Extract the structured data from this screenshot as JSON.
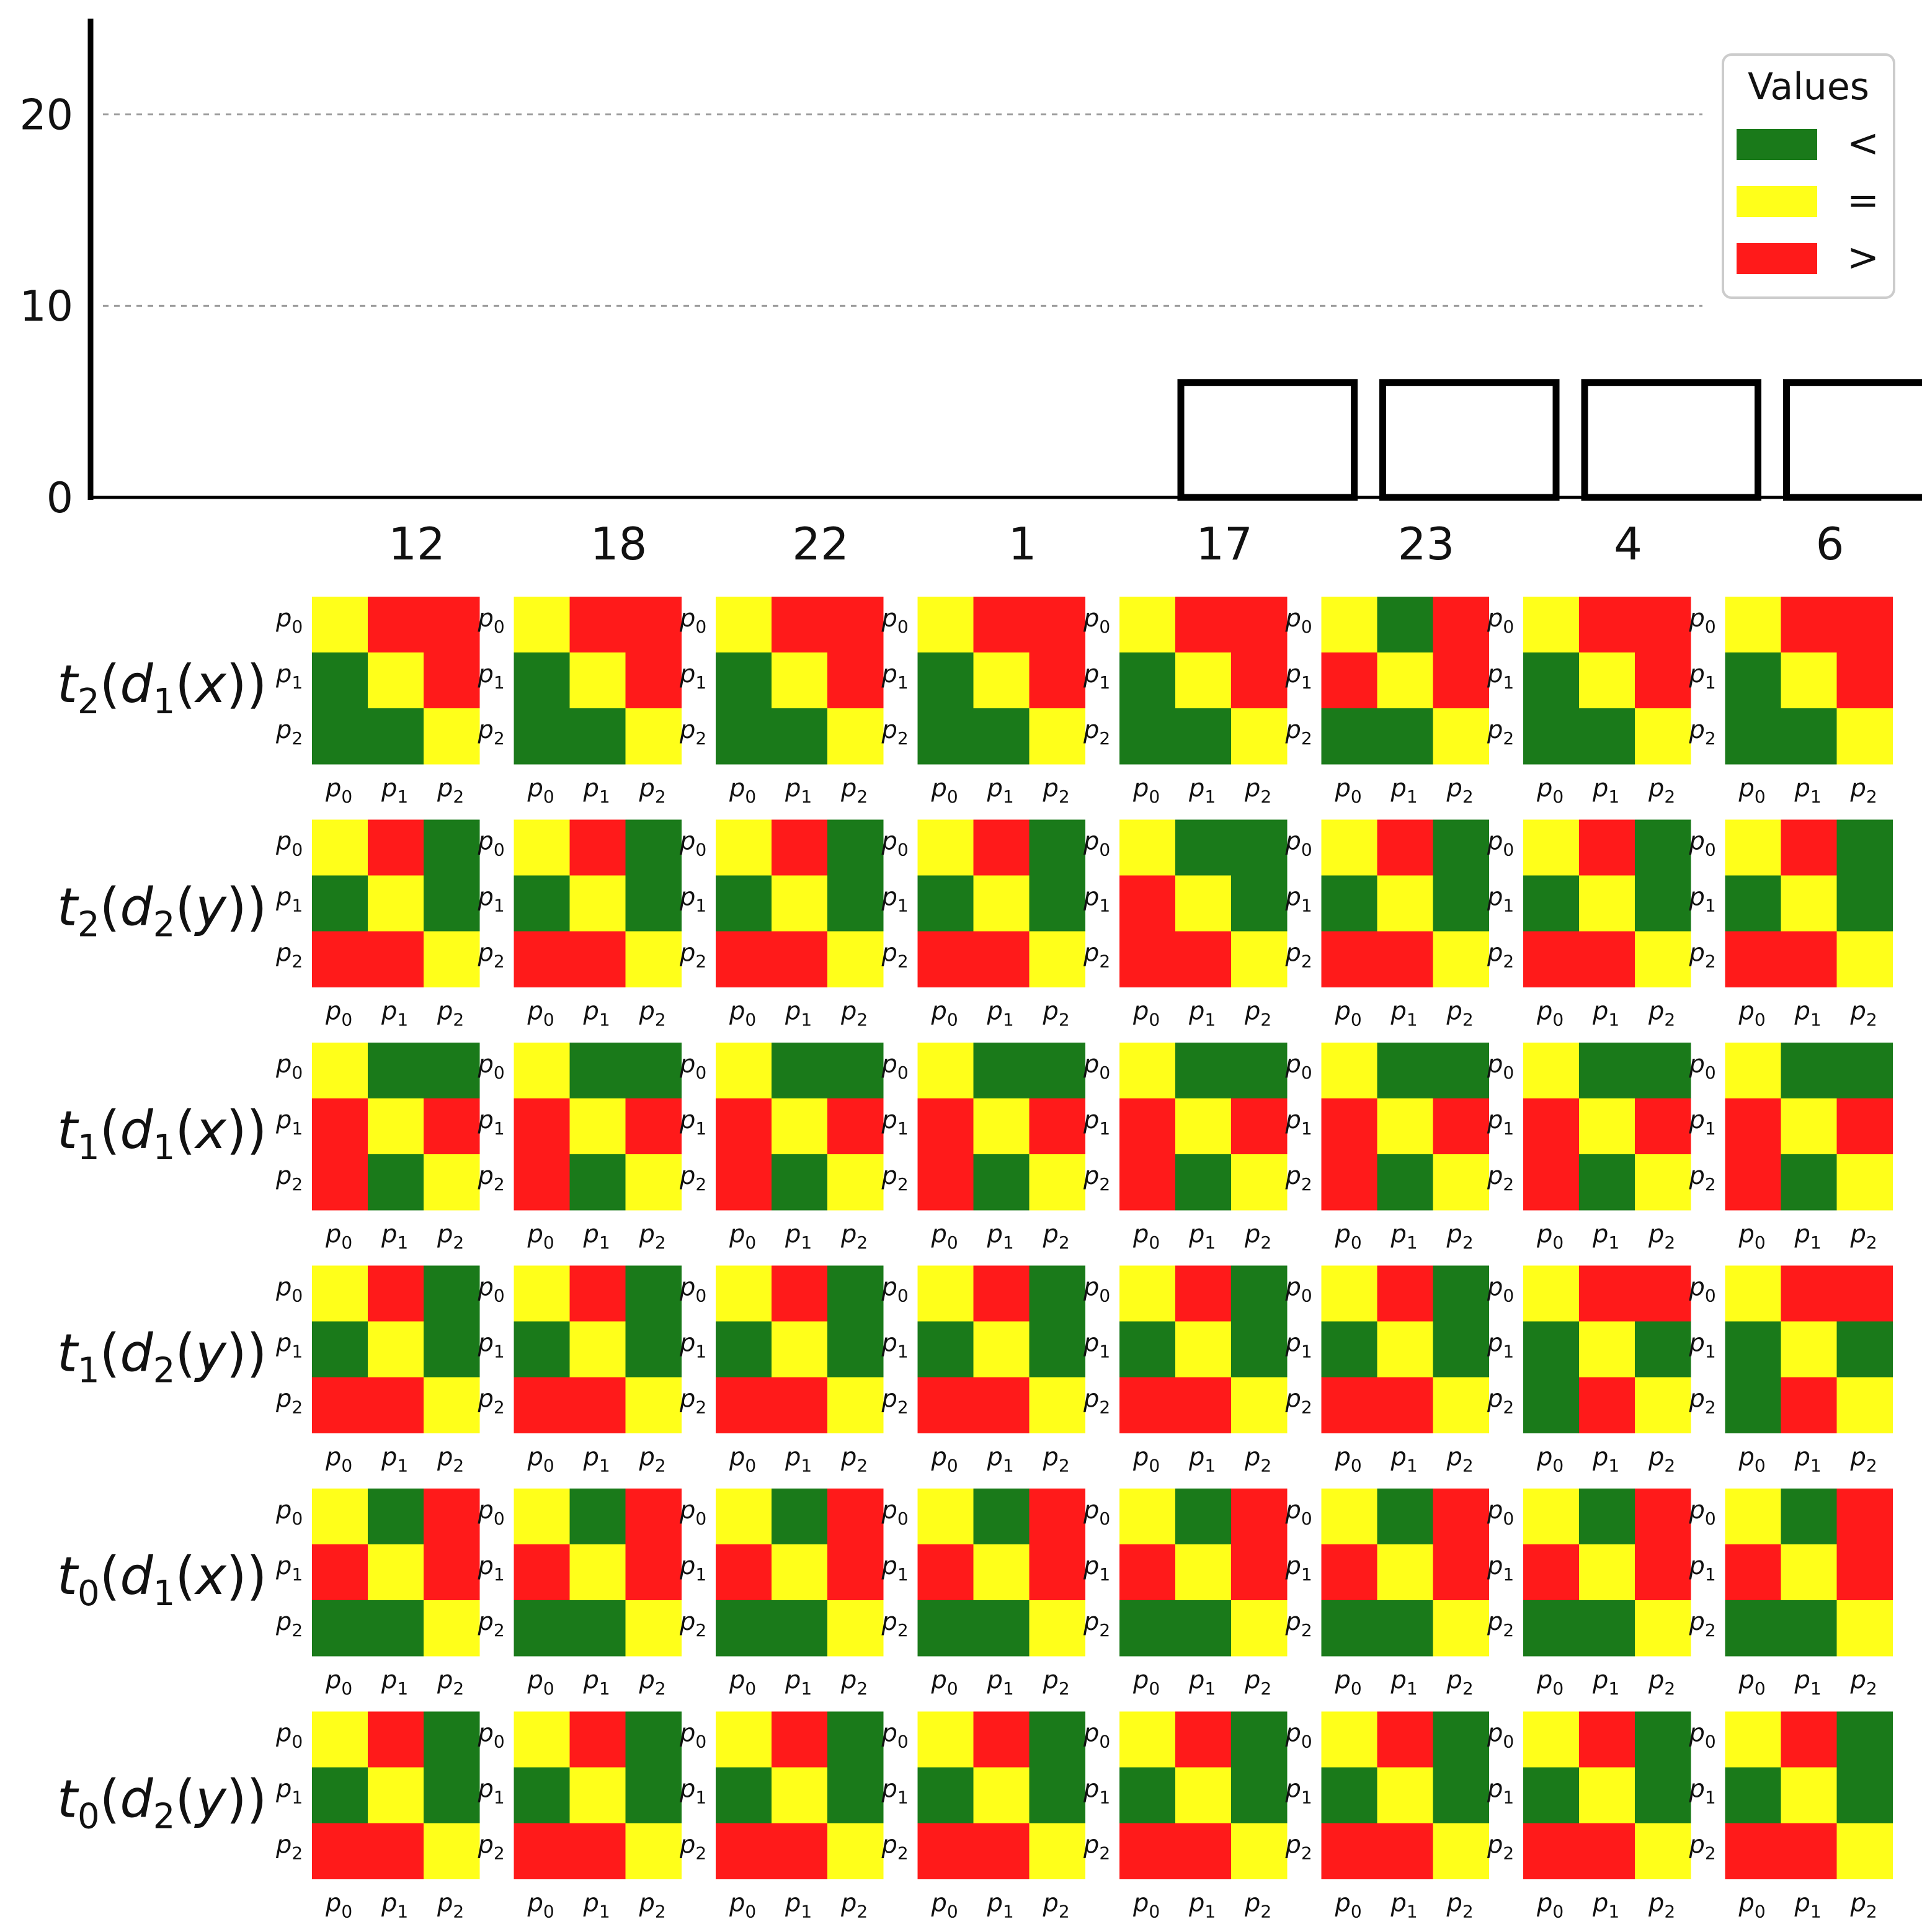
{
  "chart_data": {
    "type": "bar",
    "title": "",
    "xlabel": "",
    "ylabel": "",
    "ylim": [
      0,
      25
    ],
    "yticks": [
      "0",
      "10",
      "20"
    ],
    "ytick_values": [
      0,
      10,
      20
    ],
    "grid": "horizontal dotted at 10 and 20",
    "categories": [
      "12",
      "18",
      "22",
      "1",
      "17",
      "23",
      "4",
      "6"
    ],
    "values": [
      0,
      0,
      0,
      0,
      6,
      6,
      6,
      6
    ],
    "bar_style": "unfilled, black outline",
    "legend": {
      "title": "Values",
      "placement": "top-right",
      "entries": [
        {
          "label": "<",
          "color": "#1a7a1a"
        },
        {
          "label": "=",
          "color": "#ffff1a"
        },
        {
          "label": ">",
          "color": "#ff1a1a"
        }
      ]
    },
    "matrix_axis_labels": [
      {
        "base": "p",
        "sub": "0"
      },
      {
        "base": "p",
        "sub": "1"
      },
      {
        "base": "p",
        "sub": "2"
      }
    ],
    "matrix_cell_codes": {
      "<": "green",
      "=": "yellow",
      ">": "red"
    },
    "matrix_rows": [
      {
        "t": "t",
        "t_sub": "2",
        "d": "d",
        "d_sub": "1",
        "arg": "x",
        "matrices": [
          [
            "=>>",
            "<=>",
            "<<="
          ],
          [
            "=>>",
            "<=>",
            "<<="
          ],
          [
            "=>>",
            "<=>",
            "<<="
          ],
          [
            "=>>",
            "<=>",
            "<<="
          ],
          [
            "=>>",
            "<=>",
            "<<="
          ],
          [
            "=<>",
            ">=>",
            "<<="
          ],
          [
            "=>>",
            "<=>",
            "<<="
          ],
          [
            "=>>",
            "<=>",
            "<<="
          ]
        ]
      },
      {
        "t": "t",
        "t_sub": "2",
        "d": "d",
        "d_sub": "2",
        "arg": "y",
        "matrices": [
          [
            "=><",
            "<=<",
            ">>="
          ],
          [
            "=><",
            "<=<",
            ">>="
          ],
          [
            "=><",
            "<=<",
            ">>="
          ],
          [
            "=><",
            "<=<",
            ">>="
          ],
          [
            "=<<",
            ">=<",
            ">>="
          ],
          [
            "=><",
            "<=<",
            ">>="
          ],
          [
            "=><",
            "<=<",
            ">>="
          ],
          [
            "=><",
            "<=<",
            ">>="
          ]
        ]
      },
      {
        "t": "t",
        "t_sub": "1",
        "d": "d",
        "d_sub": "1",
        "arg": "x",
        "matrices": [
          [
            "=<<",
            ">=>",
            "><="
          ],
          [
            "=<<",
            ">=>",
            "><="
          ],
          [
            "=<<",
            ">=>",
            "><="
          ],
          [
            "=<<",
            ">=>",
            "><="
          ],
          [
            "=<<",
            ">=>",
            "><="
          ],
          [
            "=<<",
            ">=>",
            "><="
          ],
          [
            "=<<",
            ">=>",
            "><="
          ],
          [
            "=<<",
            ">=>",
            "><="
          ]
        ]
      },
      {
        "t": "t",
        "t_sub": "1",
        "d": "d",
        "d_sub": "2",
        "arg": "y",
        "matrices": [
          [
            "=><",
            "<=<",
            ">>="
          ],
          [
            "=><",
            "<=<",
            ">>="
          ],
          [
            "=><",
            "<=<",
            ">>="
          ],
          [
            "=><",
            "<=<",
            ">>="
          ],
          [
            "=><",
            "<=<",
            ">>="
          ],
          [
            "=><",
            "<=<",
            ">>="
          ],
          [
            "=>>",
            "<=<",
            "<>="
          ],
          [
            "=>>",
            "<=<",
            "<>="
          ]
        ]
      },
      {
        "t": "t",
        "t_sub": "0",
        "d": "d",
        "d_sub": "1",
        "arg": "x",
        "matrices": [
          [
            "=<>",
            ">=>",
            "<<="
          ],
          [
            "=<>",
            ">=>",
            "<<="
          ],
          [
            "=<>",
            ">=>",
            "<<="
          ],
          [
            "=<>",
            ">=>",
            "<<="
          ],
          [
            "=<>",
            ">=>",
            "<<="
          ],
          [
            "=<>",
            ">=>",
            "<<="
          ],
          [
            "=<>",
            ">=>",
            "<<="
          ],
          [
            "=<>",
            ">=>",
            "<<="
          ]
        ]
      },
      {
        "t": "t",
        "t_sub": "0",
        "d": "d",
        "d_sub": "2",
        "arg": "y",
        "matrices": [
          [
            "=><",
            "<=<",
            ">>="
          ],
          [
            "=><",
            "<=<",
            ">>="
          ],
          [
            "=><",
            "<=<",
            ">>="
          ],
          [
            "=><",
            "<=<",
            ">>="
          ],
          [
            "=><",
            "<=<",
            ">>="
          ],
          [
            "=><",
            "<=<",
            ">>="
          ],
          [
            "=><",
            "<=<",
            ">>="
          ],
          [
            "=><",
            "<=<",
            ">>="
          ]
        ]
      }
    ]
  }
}
